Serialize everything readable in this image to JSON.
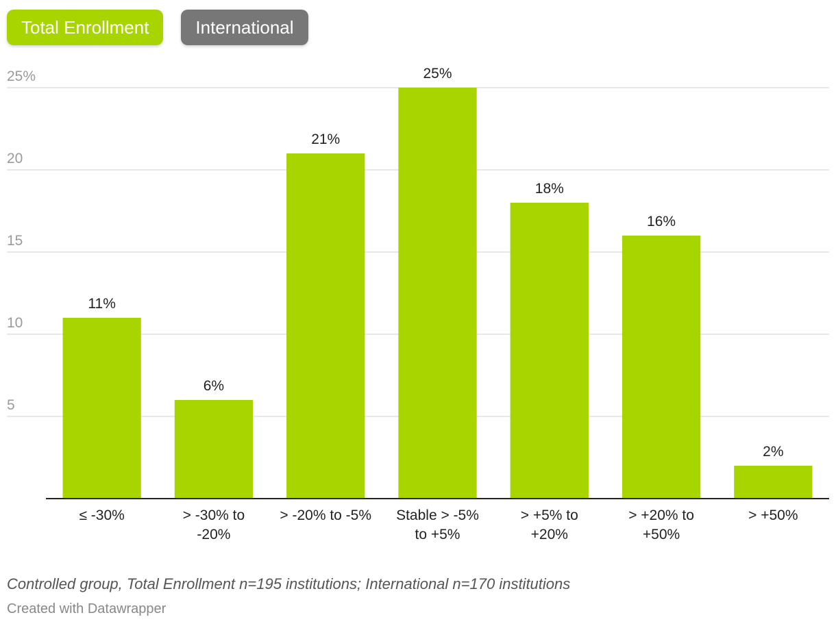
{
  "toggles": {
    "total_label": "Total Enrollment",
    "international_label": "International"
  },
  "colors": {
    "bar": "#a8d400",
    "active_toggle": "#a8d400",
    "inactive_toggle": "#777777",
    "grid": "#e0e0e0",
    "axis": "#222222"
  },
  "chart_data": {
    "type": "bar",
    "categories": [
      [
        "≤ -30%"
      ],
      [
        "> -30% to",
        "-20%"
      ],
      [
        "> -20% to -5%"
      ],
      [
        "Stable > -5%",
        "to +5%"
      ],
      [
        "> +5% to",
        "+20%"
      ],
      [
        "> +20% to",
        "+50%"
      ],
      [
        "> +50%"
      ]
    ],
    "values": [
      11,
      6,
      21,
      25,
      18,
      16,
      2
    ],
    "data_labels": [
      "11%",
      "6%",
      "21%",
      "25%",
      "18%",
      "16%",
      "2%"
    ],
    "yticks": [
      5,
      10,
      15,
      20,
      25
    ],
    "ytick_labels": [
      "5",
      "10",
      "15",
      "20",
      "25%"
    ],
    "ylim": [
      0,
      25
    ],
    "grid": true,
    "legend": "none"
  },
  "footnote": "Controlled group, Total Enrollment n=195 institutions; International n=170 institutions",
  "credit": "Created with Datawrapper"
}
